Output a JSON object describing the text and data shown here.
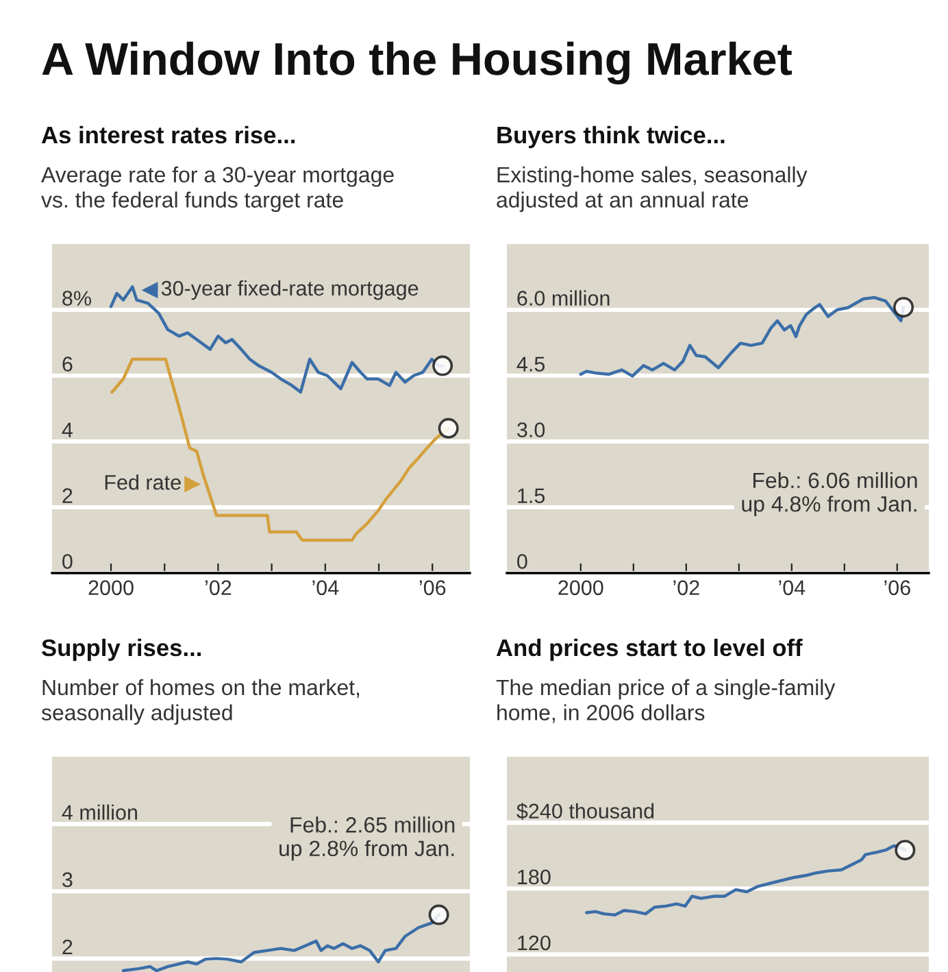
{
  "chart_data": [
    {
      "type": "other",
      "title": "A Window Into the Housing Market"
    },
    {
      "type": "line",
      "title": "As interest rates rise...",
      "subtitle": "Average rate for a 30-year mortgage\nvs. the federal funds target rate",
      "xlim": [
        1998.9,
        2006.7
      ],
      "ylim": [
        0,
        10
      ],
      "xticks": [
        {
          "value": 2000,
          "label": "2000"
        },
        {
          "value": 2001,
          "label": null
        },
        {
          "value": 2002,
          "label": "’02"
        },
        {
          "value": 2003,
          "label": null
        },
        {
          "value": 2004,
          "label": "’04"
        },
        {
          "value": 2005,
          "label": null
        },
        {
          "value": 2006,
          "label": "’06"
        }
      ],
      "yticks": [
        0,
        2,
        4,
        6,
        {
          "value": 8,
          "label": "8%"
        }
      ],
      "grid": "y",
      "series": [
        {
          "name": "30-year fixed-rate mortgage",
          "color": "#3b6ea8",
          "x": [
            2000.0,
            2000.11,
            2000.23,
            2000.4,
            2000.48,
            2000.69,
            2000.89,
            2001.06,
            2001.27,
            2001.43,
            2001.6,
            2001.85,
            2002.0,
            2002.14,
            2002.26,
            2002.43,
            2002.59,
            2002.76,
            2003.0,
            2003.17,
            2003.38,
            2003.54,
            2003.71,
            2003.87,
            2004.04,
            2004.29,
            2004.5,
            2004.66,
            2004.78,
            2004.99,
            2005.2,
            2005.32,
            2005.49,
            2005.65,
            2005.82,
            2005.99,
            2006.11,
            2006.19
          ],
          "values": [
            8.1,
            8.5,
            8.3,
            8.7,
            8.3,
            8.2,
            7.9,
            7.4,
            7.2,
            7.3,
            7.1,
            6.8,
            7.2,
            7.0,
            7.1,
            6.8,
            6.5,
            6.3,
            6.1,
            5.9,
            5.7,
            5.5,
            6.5,
            6.1,
            6.0,
            5.6,
            6.4,
            6.1,
            5.9,
            5.9,
            5.7,
            6.1,
            5.8,
            6.0,
            6.1,
            6.5,
            6.3,
            6.3
          ]
        },
        {
          "name": "Fed rate",
          "color": "#d4a03c",
          "x": [
            2000.02,
            2000.23,
            2000.4,
            2001.02,
            2001.31,
            2001.47,
            2001.6,
            2001.72,
            2001.97,
            2002.92,
            2002.96,
            2003.46,
            2003.57,
            2004.5,
            2004.58,
            2004.78,
            2004.99,
            2005.16,
            2005.41,
            2005.57,
            2005.74,
            2005.9,
            2006.07,
            2006.3
          ],
          "values": [
            5.5,
            5.9,
            6.5,
            6.5,
            4.8,
            3.8,
            3.7,
            3.0,
            1.75,
            1.75,
            1.25,
            1.25,
            1.0,
            1.0,
            1.2,
            1.5,
            1.9,
            2.3,
            2.8,
            3.2,
            3.5,
            3.8,
            4.1,
            4.4
          ]
        },
        {
          "type": "scatter",
          "marker": "circle",
          "color": "#1a1a1a",
          "x": [
            2006.19,
            2006.3
          ],
          "values": [
            6.3,
            4.4
          ]
        }
      ]
    },
    {
      "type": "line",
      "title": "Buyers think twice...",
      "subtitle": "Existing-home sales, seasonally\nadjusted at an annual rate",
      "xlim": [
        1998.6,
        2006.6
      ],
      "ylim": [
        0,
        7.5
      ],
      "xticks": [
        {
          "value": 2000,
          "label": "2000"
        },
        {
          "value": 2001,
          "label": null
        },
        {
          "value": 2002,
          "label": "’02"
        },
        {
          "value": 2003,
          "label": null
        },
        {
          "value": 2004,
          "label": "’04"
        },
        {
          "value": 2005,
          "label": null
        },
        {
          "value": 2006,
          "label": "’06"
        }
      ],
      "yticks": [
        0,
        1.5,
        {
          "value": 3,
          "label": "3.0"
        },
        4.5,
        {
          "value": 6,
          "label": "6.0 million"
        }
      ],
      "grid": "y",
      "annotations": [
        "Feb.: 6.06 million\nup 4.8% from Jan."
      ],
      "series": [
        {
          "color": "#3b6ea8",
          "x": [
            2000.0,
            2000.11,
            2000.28,
            2000.53,
            2000.78,
            2000.98,
            2001.19,
            2001.36,
            2001.57,
            2001.78,
            2001.94,
            2002.07,
            2002.19,
            2002.36,
            2002.61,
            2002.86,
            2003.03,
            2003.23,
            2003.44,
            2003.61,
            2003.73,
            2003.86,
            2003.98,
            2004.08,
            2004.15,
            2004.28,
            2004.44,
            2004.53,
            2004.69,
            2004.86,
            2005.07,
            2005.36,
            2005.57,
            2005.78,
            2005.94,
            2006.07,
            2006.12
          ],
          "values": [
            4.53,
            4.6,
            4.56,
            4.53,
            4.63,
            4.49,
            4.73,
            4.63,
            4.78,
            4.63,
            4.83,
            5.19,
            4.96,
            4.93,
            4.68,
            5.03,
            5.24,
            5.19,
            5.24,
            5.59,
            5.75,
            5.54,
            5.64,
            5.39,
            5.64,
            5.9,
            6.05,
            6.12,
            5.85,
            6.0,
            6.05,
            6.25,
            6.28,
            6.2,
            5.95,
            5.75,
            6.06
          ]
        },
        {
          "type": "scatter",
          "marker": "circle",
          "color": "#1a1a1a",
          "x": [
            2006.12
          ],
          "values": [
            6.06
          ]
        }
      ]
    },
    {
      "type": "line",
      "title": "Supply rises...",
      "subtitle": "Number of homes on the market,\nseasonally adjusted",
      "xlim": [
        1998.9,
        2006.7
      ],
      "ylim": [
        1.8,
        5
      ],
      "tick_labels": "y",
      "yticks": [
        2,
        3,
        {
          "value": 4,
          "label": "4 million"
        }
      ],
      "grid": "y",
      "annotations": [
        "Feb.: 2.65 million\nup 2.8% from Jan."
      ],
      "series": [
        {
          "color": "#3b6ea8",
          "x": [
            2000.23,
            2000.52,
            2000.73,
            2000.85,
            2001.06,
            2001.27,
            2001.43,
            2001.6,
            2001.76,
            2001.97,
            2002.18,
            2002.43,
            2002.67,
            2002.92,
            2003.17,
            2003.42,
            2003.63,
            2003.83,
            2003.92,
            2004.04,
            2004.16,
            2004.33,
            2004.5,
            2004.66,
            2004.83,
            2004.99,
            2005.12,
            2005.32,
            2005.49,
            2005.74,
            2005.99,
            2006.12
          ],
          "values": [
            1.82,
            1.85,
            1.88,
            1.82,
            1.88,
            1.92,
            1.95,
            1.92,
            1.99,
            2.0,
            1.99,
            1.95,
            2.09,
            2.12,
            2.15,
            2.12,
            2.19,
            2.26,
            2.12,
            2.19,
            2.15,
            2.22,
            2.15,
            2.19,
            2.12,
            1.95,
            2.12,
            2.15,
            2.33,
            2.46,
            2.53,
            2.65
          ]
        },
        {
          "type": "scatter",
          "marker": "circle",
          "color": "#1a1a1a",
          "x": [
            2006.12
          ],
          "values": [
            2.65
          ]
        }
      ]
    },
    {
      "type": "line",
      "title": "And prices start to level off",
      "subtitle": "The median price of a single-family\nhome, in 2006 dollars",
      "xlim": [
        1998.6,
        2006.6
      ],
      "ylim": [
        104,
        300
      ],
      "tick_labels": "y",
      "yticks": [
        120,
        180,
        {
          "value": 240,
          "label": "$240 thousand"
        }
      ],
      "grid": "y",
      "series": [
        {
          "color": "#3b6ea8",
          "x": [
            2000.11,
            2000.28,
            2000.44,
            2000.65,
            2000.82,
            2001.03,
            2001.23,
            2001.4,
            2001.61,
            2001.82,
            2001.98,
            2002.11,
            2002.28,
            2002.53,
            2002.73,
            2002.94,
            2003.15,
            2003.36,
            2003.61,
            2003.78,
            2004.03,
            2004.28,
            2004.44,
            2004.69,
            2004.94,
            2005.19,
            2005.32,
            2005.4,
            2005.61,
            2005.78,
            2005.94,
            2006.07,
            2006.15
          ],
          "values": [
            158,
            159,
            157,
            156,
            160,
            159,
            157,
            163,
            164,
            166,
            164,
            173,
            171,
            173,
            173,
            179,
            177,
            182,
            185,
            187,
            190,
            192,
            194,
            196,
            197,
            203,
            206,
            211,
            213,
            215,
            219,
            217,
            215
          ]
        },
        {
          "type": "scatter",
          "marker": "circle",
          "color": "#1a1a1a",
          "x": [
            2006.15
          ],
          "values": [
            215
          ]
        }
      ]
    }
  ]
}
